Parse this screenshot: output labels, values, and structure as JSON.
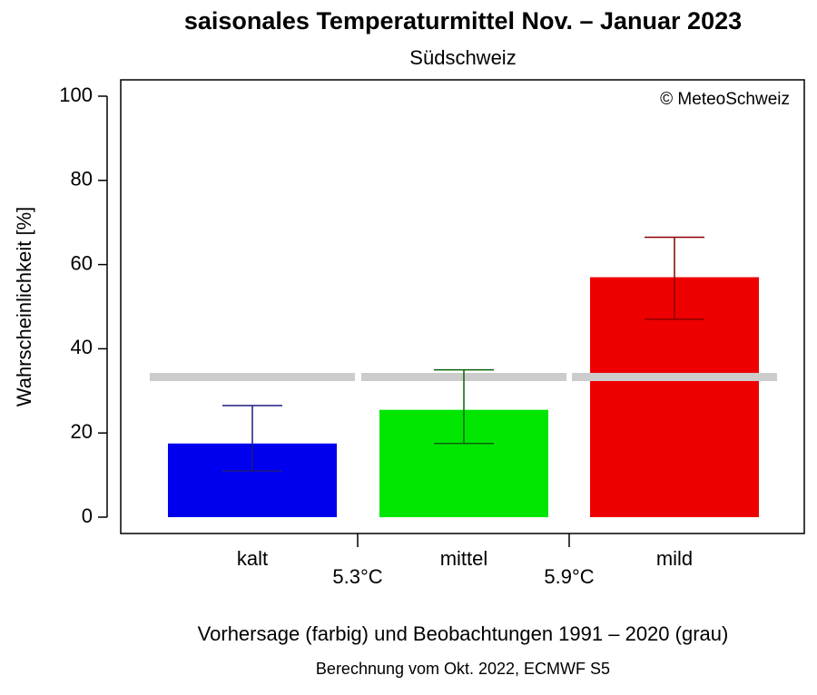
{
  "chart_data": {
    "type": "bar",
    "title": "saisonales Temperaturmittel Nov. – Januar 2023",
    "subtitle": "Südschweiz",
    "copyright": "© MeteoSchweiz",
    "ylabel": "Wahrscheinlichkeit [%]",
    "xlabel": "Vorhersage (farbig) und Beobachtungen 1991 – 2020 (grau)",
    "note": "Berechnung vom Okt. 2022, ECMWF S5",
    "categories": [
      "kalt",
      "mittel",
      "mild"
    ],
    "boundaries": [
      "5.3°C",
      "5.9°C"
    ],
    "values": [
      17.5,
      25.5,
      57
    ],
    "lower": [
      11,
      17.5,
      47
    ],
    "upper": [
      26.5,
      35,
      66.5
    ],
    "reference": [
      33.3,
      33.3,
      33.3
    ],
    "colors": [
      "#0000ee",
      "#00e600",
      "#ee0000"
    ],
    "error_colors": [
      "#1c1c80",
      "#0a640a",
      "#8b0000"
    ],
    "reference_color": "#cccccc",
    "ylim": [
      0,
      100
    ],
    "yticks": [
      0,
      20,
      40,
      60,
      80,
      100
    ]
  }
}
